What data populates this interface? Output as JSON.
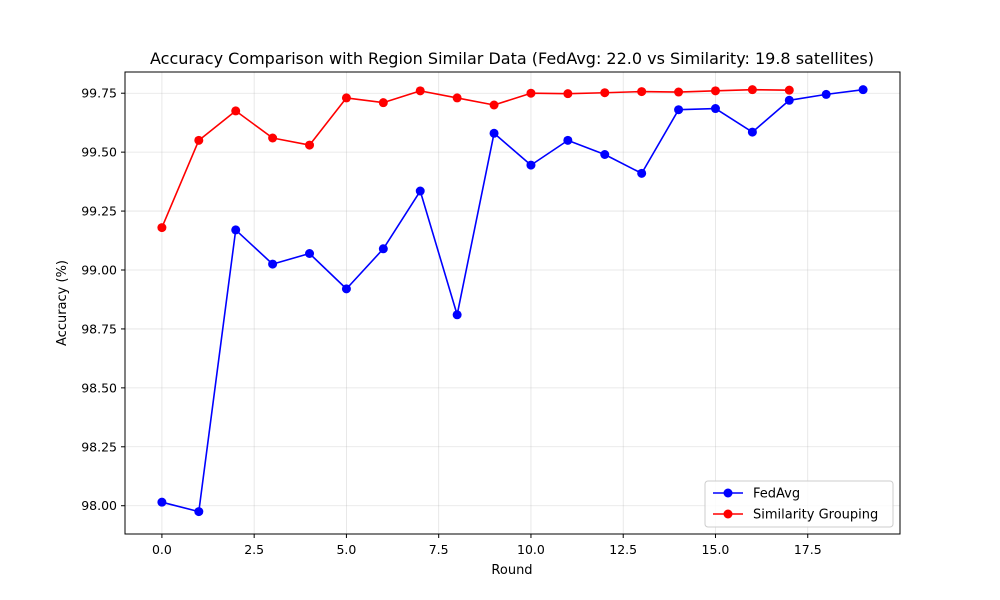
{
  "chart_data": {
    "type": "line",
    "title": "Accuracy Comparison with Region Similar Data (FedAvg: 22.0 vs Similarity: 19.8 satellites)",
    "xlabel": "Round",
    "ylabel": "Accuracy (%)",
    "xlim": [
      -1.0,
      20.0
    ],
    "ylim": [
      97.88,
      99.84
    ],
    "xticks": [
      0.0,
      2.5,
      5.0,
      7.5,
      10.0,
      12.5,
      15.0,
      17.5
    ],
    "xtick_labels": [
      "0.0",
      "2.5",
      "5.0",
      "7.5",
      "10.0",
      "12.5",
      "15.0",
      "17.5"
    ],
    "yticks": [
      98.0,
      98.25,
      98.5,
      98.75,
      99.0,
      99.25,
      99.5,
      99.75
    ],
    "ytick_labels": [
      "98.00",
      "98.25",
      "98.50",
      "98.75",
      "99.00",
      "99.25",
      "99.50",
      "99.75"
    ],
    "grid": true,
    "legend_position": "lower-right",
    "series": [
      {
        "name": "FedAvg",
        "color": "#0000ff",
        "marker": "circle",
        "x": [
          0,
          1,
          2,
          3,
          4,
          5,
          6,
          7,
          8,
          9,
          10,
          11,
          12,
          13,
          14,
          15,
          16,
          17,
          18,
          19
        ],
        "values": [
          98.015,
          97.975,
          99.17,
          99.025,
          99.07,
          98.92,
          99.09,
          99.335,
          98.81,
          99.58,
          99.445,
          99.55,
          99.49,
          99.41,
          99.68,
          99.685,
          99.585,
          99.72,
          99.745,
          99.765
        ]
      },
      {
        "name": "Similarity Grouping",
        "color": "#ff0000",
        "marker": "circle",
        "x": [
          0,
          1,
          2,
          3,
          4,
          5,
          6,
          7,
          8,
          9,
          10,
          11,
          12,
          13,
          14,
          15,
          16,
          17
        ],
        "values": [
          99.18,
          99.55,
          99.675,
          99.56,
          99.53,
          99.73,
          99.71,
          99.76,
          99.73,
          99.7,
          99.75,
          99.748,
          99.752,
          99.757,
          99.755,
          99.76,
          99.765,
          99.763
        ]
      }
    ]
  }
}
